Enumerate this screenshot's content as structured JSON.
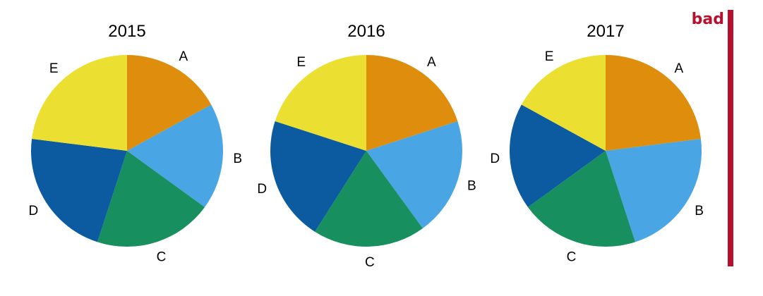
{
  "annotation": {
    "text": "bad",
    "color": "#b7102f"
  },
  "colors": {
    "A": "#df8d0c",
    "B": "#4aa5e4",
    "C": "#178f5e",
    "D": "#0c5ba1",
    "E": "#ebe032"
  },
  "chart_data": [
    {
      "type": "pie",
      "title": "2015",
      "categories": [
        "A",
        "B",
        "C",
        "D",
        "E"
      ],
      "values": [
        17,
        18,
        20,
        22,
        23
      ]
    },
    {
      "type": "pie",
      "title": "2016",
      "categories": [
        "A",
        "B",
        "C",
        "D",
        "E"
      ],
      "values": [
        20,
        20,
        19,
        21,
        20
      ]
    },
    {
      "type": "pie",
      "title": "2017",
      "categories": [
        "A",
        "B",
        "C",
        "D",
        "E"
      ],
      "values": [
        23,
        22,
        20,
        18,
        17
      ]
    }
  ]
}
